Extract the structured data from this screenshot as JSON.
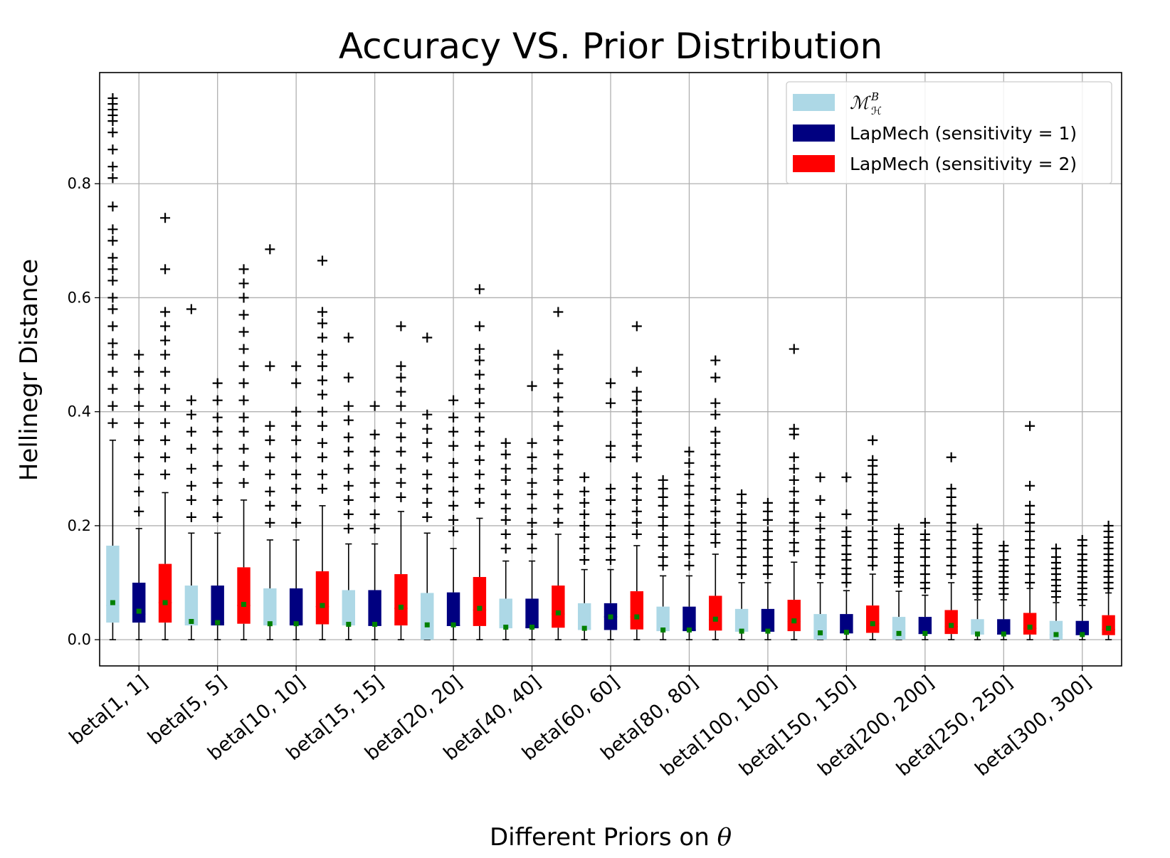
{
  "chart_data": {
    "type": "box",
    "title": "Accuracy VS. Prior Distribution",
    "xlabel": "Different Priors on",
    "xlabel_symbol": "θ",
    "ylabel": "Hellinegr Distance",
    "categories": [
      "beta[1, 1]",
      "beta[5, 5]",
      "beta[10, 10]",
      "beta[15, 15]",
      "beta[20, 20]",
      "beta[40, 40]",
      "beta[60, 60]",
      "beta[80, 80]",
      "beta[100, 100]",
      "beta[150, 150]",
      "beta[200, 200]",
      "beta[250, 250]",
      "beta[300, 300]"
    ],
    "ylim": [
      -0.046,
      0.995
    ],
    "yticks": [
      {
        "value": 0,
        "label": "0.0"
      },
      0.2,
      0.4,
      0.6,
      0.8
    ],
    "grid": true,
    "legend": "upper right",
    "mean_color": "#008000",
    "series": [
      {
        "name": "ℳ",
        "name_sup": "B",
        "name_sub": "ℋ",
        "color": "#add8e6",
        "boxes": [
          {
            "whislo": 0,
            "q1": 0.03,
            "med": 0.06,
            "q3": 0.165,
            "whishi": 0.35,
            "mean": 0.065,
            "fliers": [
              0.38,
              0.41,
              0.44,
              0.47,
              0.5,
              0.52,
              0.55,
              0.58,
              0.6,
              0.63,
              0.65,
              0.67,
              0.7,
              0.72,
              0.76,
              0.81,
              0.83,
              0.86,
              0.89,
              0.91,
              0.92,
              0.93,
              0.94,
              0.95
            ]
          },
          {
            "whislo": 0,
            "q1": 0.025,
            "med": 0.03,
            "q3": 0.095,
            "whishi": 0.187,
            "mean": 0.032,
            "fliers": [
              0.215,
              0.245,
              0.27,
              0.3,
              0.335,
              0.365,
              0.395,
              0.42,
              0.58
            ]
          },
          {
            "whislo": 0,
            "q1": 0.025,
            "med": 0.028,
            "q3": 0.09,
            "whishi": 0.175,
            "mean": 0.028,
            "fliers": [
              0.205,
              0.235,
              0.26,
              0.29,
              0.32,
              0.35,
              0.375,
              0.48,
              0.685
            ]
          },
          {
            "whislo": 0,
            "q1": 0.025,
            "med": 0.027,
            "q3": 0.087,
            "whishi": 0.168,
            "mean": 0.027,
            "fliers": [
              0.195,
              0.22,
              0.245,
              0.27,
              0.3,
              0.33,
              0.355,
              0.385,
              0.41,
              0.46,
              0.53
            ]
          },
          {
            "whislo": 0,
            "q1": 0,
            "med": 0.025,
            "q3": 0.082,
            "whishi": 0.187,
            "mean": 0.026,
            "fliers": [
              0.215,
              0.24,
              0.265,
              0.29,
              0.32,
              0.345,
              0.37,
              0.395,
              0.53
            ]
          },
          {
            "whislo": 0,
            "q1": 0.02,
            "med": 0.022,
            "q3": 0.072,
            "whishi": 0.138,
            "mean": 0.022,
            "fliers": [
              0.16,
              0.185,
              0.21,
              0.23,
              0.255,
              0.28,
              0.3,
              0.325,
              0.345
            ]
          },
          {
            "whislo": 0,
            "q1": 0.017,
            "med": 0.02,
            "q3": 0.064,
            "whishi": 0.123,
            "mean": 0.02,
            "fliers": [
              0.14,
              0.16,
              0.18,
              0.2,
              0.22,
              0.24,
              0.26,
              0.285
            ]
          },
          {
            "whislo": 0,
            "q1": 0.015,
            "med": 0.017,
            "q3": 0.058,
            "whishi": 0.112,
            "mean": 0.017,
            "fliers": [
              0.13,
              0.145,
              0.165,
              0.18,
              0.2,
              0.215,
              0.235,
              0.25,
              0.265,
              0.28
            ]
          },
          {
            "whislo": 0,
            "q1": 0.014,
            "med": 0.015,
            "q3": 0.054,
            "whishi": 0.1,
            "mean": 0.015,
            "fliers": [
              0.115,
              0.13,
              0.145,
              0.16,
              0.175,
              0.19,
              0.205,
              0.22,
              0.24,
              0.255
            ]
          },
          {
            "whislo": 0,
            "q1": 0,
            "med": 0.012,
            "q3": 0.045,
            "whishi": 0.1,
            "mean": 0.012,
            "fliers": [
              0.115,
              0.13,
              0.145,
              0.16,
              0.175,
              0.195,
              0.215,
              0.245,
              0.285
            ]
          },
          {
            "whislo": 0,
            "q1": 0,
            "med": 0.011,
            "q3": 0.04,
            "whishi": 0.085,
            "mean": 0.011,
            "fliers": [
              0.1,
              0.11,
              0.12,
              0.135,
              0.145,
              0.16,
              0.17,
              0.185,
              0.195
            ]
          },
          {
            "whislo": 0,
            "q1": 0.009,
            "med": 0.01,
            "q3": 0.036,
            "whishi": 0.07,
            "mean": 0.01,
            "fliers": [
              0.08,
              0.09,
              0.1,
              0.11,
              0.12,
              0.135,
              0.145,
              0.16,
              0.17,
              0.185,
              0.195
            ]
          },
          {
            "whislo": 0,
            "q1": 0,
            "med": 0.009,
            "q3": 0.033,
            "whishi": 0.065,
            "mean": 0.009,
            "fliers": [
              0.075,
              0.085,
              0.095,
              0.105,
              0.115,
              0.125,
              0.135,
              0.145,
              0.16
            ]
          }
        ]
      },
      {
        "name": "LapMech (sensitivity = 1)",
        "color": "#000080",
        "boxes": [
          {
            "whislo": 0,
            "q1": 0.03,
            "med": 0.045,
            "q3": 0.1,
            "whishi": 0.195,
            "mean": 0.05,
            "fliers": [
              0.225,
              0.26,
              0.29,
              0.32,
              0.35,
              0.38,
              0.41,
              0.44,
              0.47,
              0.5
            ]
          },
          {
            "whislo": 0,
            "q1": 0.025,
            "med": 0.03,
            "q3": 0.095,
            "whishi": 0.187,
            "mean": 0.03,
            "fliers": [
              0.215,
              0.245,
              0.275,
              0.305,
              0.335,
              0.365,
              0.39,
              0.42,
              0.45
            ]
          },
          {
            "whislo": 0,
            "q1": 0.025,
            "med": 0.028,
            "q3": 0.09,
            "whishi": 0.175,
            "mean": 0.028,
            "fliers": [
              0.205,
              0.235,
              0.265,
              0.29,
              0.32,
              0.35,
              0.375,
              0.4,
              0.45,
              0.48
            ]
          },
          {
            "whislo": 0,
            "q1": 0.024,
            "med": 0.026,
            "q3": 0.087,
            "whishi": 0.168,
            "mean": 0.027,
            "fliers": [
              0.195,
              0.22,
              0.25,
              0.275,
              0.305,
              0.33,
              0.36,
              0.41
            ]
          },
          {
            "whislo": 0,
            "q1": 0.024,
            "med": 0.025,
            "q3": 0.083,
            "whishi": 0.16,
            "mean": 0.026,
            "fliers": [
              0.19,
              0.21,
              0.235,
              0.26,
              0.285,
              0.31,
              0.34,
              0.365,
              0.39,
              0.42
            ]
          },
          {
            "whislo": 0,
            "q1": 0.02,
            "med": 0.022,
            "q3": 0.072,
            "whishi": 0.138,
            "mean": 0.022,
            "fliers": [
              0.16,
              0.185,
              0.205,
              0.23,
              0.255,
              0.275,
              0.3,
              0.32,
              0.345,
              0.445
            ]
          },
          {
            "whislo": 0,
            "q1": 0.017,
            "med": 0.04,
            "q3": 0.064,
            "whishi": 0.123,
            "mean": 0.04,
            "fliers": [
              0.14,
              0.16,
              0.18,
              0.2,
              0.22,
              0.245,
              0.265,
              0.32,
              0.34,
              0.415,
              0.45
            ]
          },
          {
            "whislo": 0,
            "q1": 0.015,
            "med": 0.017,
            "q3": 0.058,
            "whishi": 0.112,
            "mean": 0.017,
            "fliers": [
              0.13,
              0.15,
              0.165,
              0.185,
              0.2,
              0.22,
              0.235,
              0.255,
              0.27,
              0.29,
              0.31,
              0.33
            ]
          },
          {
            "whislo": 0,
            "q1": 0.014,
            "med": 0.015,
            "q3": 0.054,
            "whishi": 0.1,
            "mean": 0.015,
            "fliers": [
              0.115,
              0.13,
              0.145,
              0.16,
              0.175,
              0.19,
              0.21,
              0.225,
              0.24
            ]
          },
          {
            "whislo": 0,
            "q1": 0.011,
            "med": 0.013,
            "q3": 0.045,
            "whishi": 0.086,
            "mean": 0.013,
            "fliers": [
              0.1,
              0.115,
              0.125,
              0.14,
              0.15,
              0.165,
              0.18,
              0.19,
              0.22,
              0.285
            ]
          },
          {
            "whislo": 0,
            "q1": 0.01,
            "med": 0.011,
            "q3": 0.04,
            "whishi": 0.078,
            "mean": 0.011,
            "fliers": [
              0.09,
              0.1,
              0.115,
              0.13,
              0.145,
              0.16,
              0.175,
              0.185,
              0.205
            ]
          },
          {
            "whislo": 0,
            "q1": 0.009,
            "med": 0.01,
            "q3": 0.036,
            "whishi": 0.07,
            "mean": 0.01,
            "fliers": [
              0.08,
              0.09,
              0.1,
              0.11,
              0.12,
              0.13,
              0.14,
              0.155,
              0.165
            ]
          },
          {
            "whislo": 0,
            "q1": 0.008,
            "med": 0.009,
            "q3": 0.033,
            "whishi": 0.06,
            "mean": 0.009,
            "fliers": [
              0.07,
              0.08,
              0.09,
              0.1,
              0.11,
              0.12,
              0.13,
              0.14,
              0.15,
              0.165,
              0.175
            ]
          }
        ]
      },
      {
        "name": "LapMech (sensitivity = 2)",
        "color": "#ff0000",
        "boxes": [
          {
            "whislo": 0,
            "q1": 0.03,
            "med": 0.065,
            "q3": 0.133,
            "whishi": 0.258,
            "mean": 0.065,
            "fliers": [
              0.29,
              0.32,
              0.35,
              0.38,
              0.41,
              0.44,
              0.47,
              0.5,
              0.525,
              0.55,
              0.575,
              0.65,
              0.74
            ]
          },
          {
            "whislo": 0,
            "q1": 0.028,
            "med": 0.06,
            "q3": 0.127,
            "whishi": 0.245,
            "mean": 0.062,
            "fliers": [
              0.275,
              0.305,
              0.335,
              0.365,
              0.39,
              0.42,
              0.45,
              0.48,
              0.51,
              0.54,
              0.57,
              0.6,
              0.625,
              0.65
            ]
          },
          {
            "whislo": 0,
            "q1": 0.027,
            "med": 0.058,
            "q3": 0.12,
            "whishi": 0.235,
            "mean": 0.06,
            "fliers": [
              0.265,
              0.29,
              0.32,
              0.345,
              0.375,
              0.4,
              0.43,
              0.455,
              0.48,
              0.5,
              0.53,
              0.555,
              0.575,
              0.665
            ]
          },
          {
            "whislo": 0,
            "q1": 0.025,
            "med": 0.055,
            "q3": 0.115,
            "whishi": 0.225,
            "mean": 0.057,
            "fliers": [
              0.25,
              0.275,
              0.3,
              0.33,
              0.355,
              0.38,
              0.41,
              0.435,
              0.46,
              0.48,
              0.55
            ]
          },
          {
            "whislo": 0,
            "q1": 0.024,
            "med": 0.052,
            "q3": 0.11,
            "whishi": 0.213,
            "mean": 0.055,
            "fliers": [
              0.24,
              0.265,
              0.29,
              0.315,
              0.34,
              0.365,
              0.39,
              0.415,
              0.44,
              0.465,
              0.49,
              0.51,
              0.55,
              0.615
            ]
          },
          {
            "whislo": 0,
            "q1": 0.021,
            "med": 0.045,
            "q3": 0.095,
            "whishi": 0.185,
            "mean": 0.047,
            "fliers": [
              0.205,
              0.23,
              0.255,
              0.28,
              0.3,
              0.325,
              0.35,
              0.375,
              0.4,
              0.425,
              0.45,
              0.475,
              0.5,
              0.575
            ]
          },
          {
            "whislo": 0,
            "q1": 0.018,
            "med": 0.04,
            "q3": 0.085,
            "whishi": 0.165,
            "mean": 0.04,
            "fliers": [
              0.185,
              0.205,
              0.225,
              0.245,
              0.265,
              0.285,
              0.32,
              0.34,
              0.36,
              0.38,
              0.4,
              0.42,
              0.435,
              0.47,
              0.55
            ]
          },
          {
            "whislo": 0,
            "q1": 0.016,
            "med": 0.035,
            "q3": 0.077,
            "whishi": 0.15,
            "mean": 0.036,
            "fliers": [
              0.17,
              0.185,
              0.205,
              0.225,
              0.245,
              0.265,
              0.285,
              0.305,
              0.325,
              0.345,
              0.365,
              0.395,
              0.415,
              0.46,
              0.49
            ]
          },
          {
            "whislo": 0,
            "q1": 0.015,
            "med": 0.032,
            "q3": 0.07,
            "whishi": 0.136,
            "mean": 0.033,
            "fliers": [
              0.155,
              0.17,
              0.19,
              0.205,
              0.225,
              0.24,
              0.26,
              0.28,
              0.3,
              0.32,
              0.36,
              0.37,
              0.51
            ]
          },
          {
            "whislo": 0,
            "q1": 0.012,
            "med": 0.028,
            "q3": 0.06,
            "whishi": 0.115,
            "mean": 0.028,
            "fliers": [
              0.13,
              0.145,
              0.16,
              0.175,
              0.19,
              0.21,
              0.225,
              0.24,
              0.26,
              0.275,
              0.29,
              0.305,
              0.315,
              0.35
            ]
          },
          {
            "whislo": 0,
            "q1": 0.01,
            "med": 0.023,
            "q3": 0.052,
            "whishi": 0.1,
            "mean": 0.025,
            "fliers": [
              0.115,
              0.13,
              0.145,
              0.16,
              0.175,
              0.19,
              0.205,
              0.22,
              0.235,
              0.25,
              0.265,
              0.32
            ]
          },
          {
            "whislo": 0,
            "q1": 0.009,
            "med": 0.02,
            "q3": 0.047,
            "whishi": 0.09,
            "mean": 0.022,
            "fliers": [
              0.1,
              0.115,
              0.13,
              0.145,
              0.16,
              0.175,
              0.19,
              0.205,
              0.22,
              0.235,
              0.27,
              0.375
            ]
          },
          {
            "whislo": 0,
            "q1": 0.008,
            "med": 0.018,
            "q3": 0.043,
            "whishi": 0.082,
            "mean": 0.02,
            "fliers": [
              0.09,
              0.1,
              0.11,
              0.12,
              0.13,
              0.14,
              0.15,
              0.16,
              0.17,
              0.18,
              0.19,
              0.2
            ]
          }
        ]
      }
    ]
  }
}
